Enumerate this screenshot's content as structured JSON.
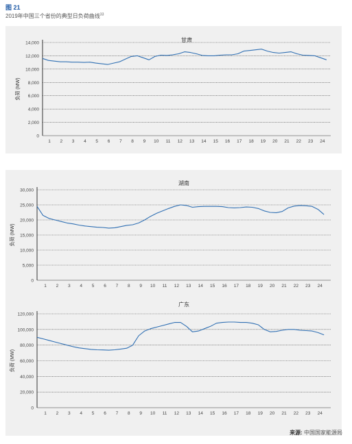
{
  "figure": {
    "number": "图 21",
    "caption": "2019年中国三个省份的典型日负荷曲线",
    "caption_sup": "33"
  },
  "source": {
    "label": "来源:",
    "text": "中国国家能源局"
  },
  "colors": {
    "line": "#2f6fb3",
    "panel": "#f0f0f0",
    "grid": "#333333",
    "title_accent": "#1f5aa6"
  },
  "chart_data": [
    {
      "type": "line",
      "title": "甘肃",
      "ylabel": "负荷 (MW)",
      "xlabel": "",
      "ylim": [
        0,
        14000
      ],
      "yticks": [
        0,
        2000,
        4000,
        6000,
        8000,
        10000,
        12000,
        14000
      ],
      "ytick_labels": [
        "0",
        "2,000",
        "4,000",
        "6,000",
        "8,000",
        "10,000",
        "12,000",
        "14,000"
      ],
      "x_categories": [
        "1",
        "2",
        "3",
        "4",
        "5",
        "6",
        "7",
        "8",
        "9",
        "10",
        "11",
        "12",
        "13",
        "14",
        "15",
        "16",
        "17",
        "18",
        "19",
        "20",
        "21",
        "22",
        "23",
        "24"
      ],
      "grid": "horizontal dotted",
      "x": [
        0,
        0.5,
        1,
        1.5,
        2,
        2.5,
        3,
        3.5,
        4,
        4.5,
        5,
        5.5,
        6,
        6.5,
        7,
        7.5,
        8,
        8.5,
        9,
        9.5,
        10,
        10.5,
        11,
        11.5,
        12,
        12.5,
        13,
        13.5,
        14,
        14.5,
        15,
        15.5,
        16,
        16.5,
        17,
        17.5,
        18,
        18.5,
        19,
        19.5,
        20,
        20.5,
        21,
        21.5,
        22,
        22.5,
        23,
        23.5,
        24
      ],
      "y": [
        11600,
        11300,
        11200,
        11100,
        11100,
        11050,
        11050,
        11000,
        11050,
        10900,
        10800,
        10700,
        10900,
        11100,
        11500,
        11900,
        12000,
        11700,
        11400,
        11900,
        12100,
        12050,
        12150,
        12300,
        12600,
        12500,
        12300,
        12050,
        12000,
        12000,
        12100,
        12150,
        12150,
        12300,
        12700,
        12800,
        12900,
        13000,
        12700,
        12500,
        12400,
        12500,
        12600,
        12300,
        12100,
        12050,
        12000,
        11700,
        11400
      ]
    },
    {
      "type": "line",
      "title": "湖南",
      "ylabel": "负荷 (MW)",
      "xlabel": "",
      "ylim": [
        0,
        30000
      ],
      "yticks": [
        0,
        5000,
        10000,
        15000,
        20000,
        25000,
        30000
      ],
      "ytick_labels": [
        "0",
        "5,000",
        "10,000",
        "15,000",
        "20,000",
        "25,000",
        "30,000"
      ],
      "x_categories": [
        "1",
        "2",
        "3",
        "4",
        "5",
        "6",
        "7",
        "8",
        "9",
        "10",
        "11",
        "12",
        "13",
        "14",
        "15",
        "16",
        "17",
        "18",
        "19",
        "20",
        "21",
        "22",
        "23",
        "24"
      ],
      "grid": "horizontal dotted",
      "x": [
        0,
        0.5,
        1,
        1.5,
        2,
        2.5,
        3,
        3.5,
        4,
        4.5,
        5,
        5.5,
        6,
        6.5,
        7,
        7.5,
        8,
        8.5,
        9,
        9.5,
        10,
        10.5,
        11,
        11.5,
        12,
        12.5,
        13,
        13.5,
        14,
        14.5,
        15,
        15.5,
        16,
        16.5,
        17,
        17.5,
        18,
        18.5,
        19,
        19.5,
        20,
        20.5,
        21,
        21.5,
        22,
        22.5,
        23,
        23.5,
        24
      ],
      "y": [
        24500,
        21500,
        20500,
        20000,
        19500,
        19000,
        18700,
        18300,
        18000,
        17800,
        17600,
        17500,
        17300,
        17400,
        17800,
        18200,
        18400,
        19000,
        20000,
        21200,
        22200,
        23000,
        23800,
        24500,
        25000,
        24800,
        24200,
        24400,
        24500,
        24500,
        24500,
        24400,
        24100,
        24000,
        24100,
        24300,
        24200,
        23800,
        23000,
        22500,
        22400,
        22800,
        24000,
        24600,
        24800,
        24700,
        24500,
        23500,
        21800
      ]
    },
    {
      "type": "line",
      "title": "广东",
      "ylabel": "负荷 (MW)",
      "xlabel": "",
      "ylim": [
        0,
        120000
      ],
      "yticks": [
        0,
        20000,
        40000,
        60000,
        80000,
        100000,
        120000
      ],
      "ytick_labels": [
        "0",
        "20,000",
        "40,000",
        "60,000",
        "80,000",
        "100,000",
        "120,000"
      ],
      "x_categories": [
        "1",
        "2",
        "3",
        "4",
        "5",
        "6",
        "7",
        "8",
        "9",
        "10",
        "11",
        "12",
        "13",
        "14",
        "15",
        "16",
        "17",
        "18",
        "19",
        "20",
        "21",
        "22",
        "23",
        "24"
      ],
      "grid": "horizontal dotted",
      "x": [
        0,
        0.5,
        1,
        1.5,
        2,
        2.5,
        3,
        3.5,
        4,
        4.5,
        5,
        5.5,
        6,
        6.5,
        7,
        7.5,
        8,
        8.5,
        9,
        9.5,
        10,
        10.5,
        11,
        11.5,
        12,
        12.5,
        13,
        13.5,
        14,
        14.5,
        15,
        15.5,
        16,
        16.5,
        17,
        17.5,
        18,
        18.5,
        19,
        19.5,
        20,
        20.5,
        21,
        21.5,
        22,
        22.5,
        23,
        23.5,
        24
      ],
      "y": [
        90000,
        88000,
        86000,
        84000,
        82000,
        80000,
        78000,
        76500,
        75500,
        74500,
        74000,
        73800,
        73500,
        74000,
        75000,
        76000,
        80000,
        92000,
        98000,
        101000,
        103000,
        105000,
        107000,
        109000,
        109000,
        104000,
        97000,
        98000,
        101000,
        104000,
        108000,
        109000,
        109500,
        109500,
        109000,
        109000,
        108000,
        106000,
        100000,
        97000,
        97500,
        99000,
        100000,
        100000,
        99000,
        98500,
        98000,
        96000,
        93000
      ]
    }
  ]
}
